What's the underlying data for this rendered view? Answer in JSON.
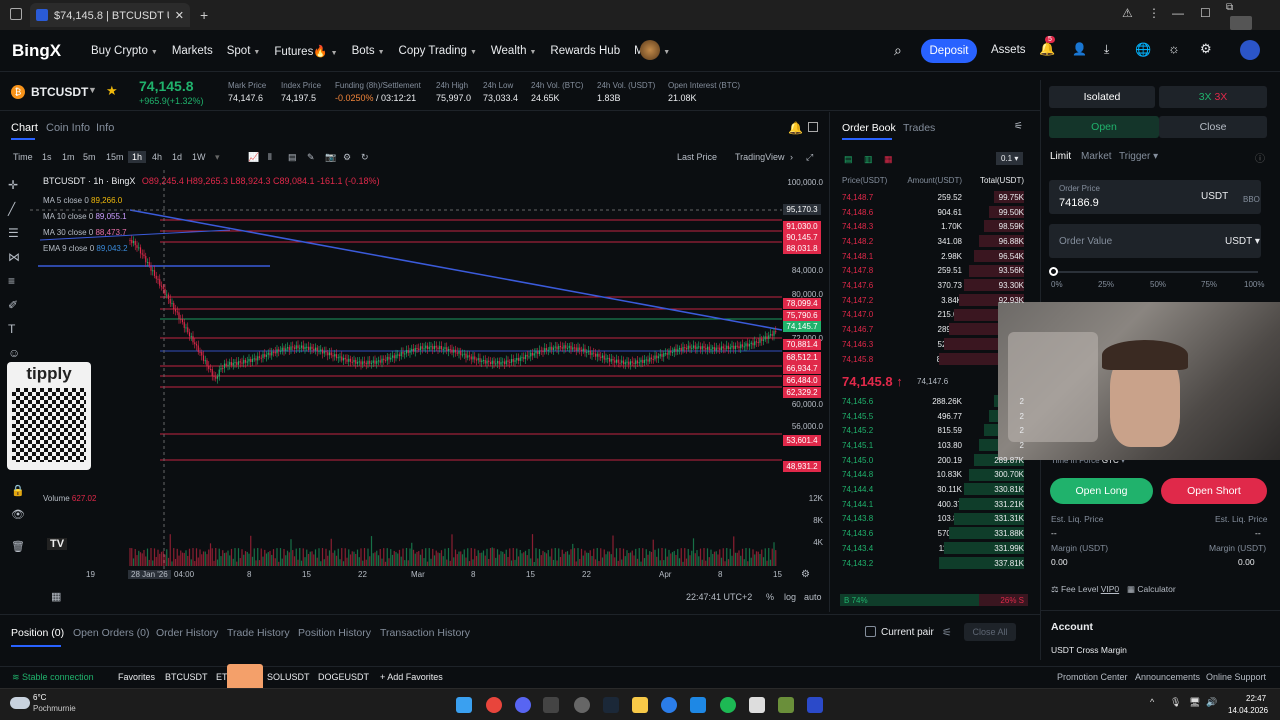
{
  "browser": {
    "tab_title": "$74,145.8 | BTCUSDT USDⓈ...",
    "new_tab": "+"
  },
  "nav": {
    "logo": "BingX",
    "items": [
      "Buy Crypto",
      "Markets",
      "Spot",
      "Futures🔥",
      "Bots",
      "Copy Trading",
      "Wealth",
      "Rewards Hub",
      "More"
    ],
    "deposit": "Deposit",
    "assets": "Assets",
    "notif_count": "5"
  },
  "ticker": {
    "symbol": "BTCUSDT",
    "price": "74,145.8",
    "change": "+965.9(+1.32%)",
    "stats": [
      {
        "label": "Mark Price",
        "value": "74,147.6"
      },
      {
        "label": "Index Price",
        "value": "74,197.5"
      },
      {
        "label": "Funding (8h)/Settlement",
        "value": "-0.0250%",
        "value2": "/ 03:12:21"
      },
      {
        "label": "24h High",
        "value": "75,997.0"
      },
      {
        "label": "24h Low",
        "value": "73,033.4"
      },
      {
        "label": "24h Vol. (BTC)",
        "value": "24.65K"
      },
      {
        "label": "24h Vol. (USDT)",
        "value": "1.83B"
      },
      {
        "label": "Open Interest (BTC)",
        "value": "21.08K"
      }
    ]
  },
  "chart": {
    "tabs": [
      "Chart",
      "Coin Info",
      "Info"
    ],
    "timeframes": [
      "Time",
      "1s",
      "1m",
      "5m",
      "15m",
      "1h",
      "4h",
      "1d",
      "1W"
    ],
    "last_price": "Last Price",
    "view": "TradingView",
    "legend": "BTCUSDT · 1h · BingX",
    "ohlc": "O89,245.4 H89,265.3 L88,924.3 C89,084.1 -161.1 (-0.18%)",
    "ma_lines": [
      {
        "label": "MA 5 close 0",
        "value": "89,266.0"
      },
      {
        "label": "MA 10 close 0",
        "value": "89,055.1"
      },
      {
        "label": "MA 30 close 0",
        "value": "88,473.7"
      },
      {
        "label": "EMA 9 close 0",
        "value": "89,043.2"
      }
    ],
    "volume_label": "Volume",
    "volume_value": "627.02",
    "price_axis": [
      "100,000.0",
      "84,000.0",
      "80,000.0",
      "72,000.0",
      "60,000.0",
      "56,000.0",
      "12K",
      "8K",
      "4K"
    ],
    "price_badges": [
      "95,170.3",
      "91,030.0",
      "90,145.7",
      "88,031.8",
      "78,099.4",
      "75,790.6",
      "74,145.7",
      "70,881.4",
      "68,512.1",
      "66,934.7",
      "66,484.0",
      "62,329.2",
      "53,601.4",
      "48,931.2"
    ],
    "time_axis": [
      "19",
      "28 Jan '26",
      "04:00",
      "8",
      "15",
      "22",
      "Mar",
      "8",
      "15",
      "22",
      "Apr",
      "8",
      "15"
    ],
    "clock": "22:47:41 UTC+2",
    "scale_opts": [
      "%",
      "log",
      "auto"
    ],
    "sponsor": "tipply",
    "colors": {
      "up": "#20b26c",
      "down": "#e0294a",
      "accent": "#2962ff",
      "line": "#3b5bdb"
    }
  },
  "orderbook": {
    "tabs": [
      "Order Book",
      "Trades"
    ],
    "step": "0.1",
    "headers": [
      "Price(USDT)",
      "Amount(USDT)",
      "Total(USDT)"
    ],
    "asks": [
      [
        "74,148.7",
        "259.52",
        "99.75K"
      ],
      [
        "74,148.6",
        "904.61",
        "99.50K"
      ],
      [
        "74,148.3",
        "1.70K",
        "98.59K"
      ],
      [
        "74,148.2",
        "341.08",
        "96.88K"
      ],
      [
        "74,148.1",
        "2.98K",
        "96.54K"
      ],
      [
        "74,147.8",
        "259.51",
        "93.56K"
      ],
      [
        "74,147.6",
        "370.73",
        "93.30K"
      ],
      [
        "74,147.2",
        "3.84K",
        "92.93K"
      ],
      [
        "74,147.0",
        "215.02",
        ""
      ],
      [
        "74,146.7",
        "289.17",
        ""
      ],
      [
        "74,146.3",
        "526.43",
        ""
      ],
      [
        "74,145.8",
        "88.06K",
        ""
      ]
    ],
    "mid_price": "74,145.8",
    "mid_mark": "74,147.6",
    "bids": [
      [
        "74,145.6",
        "288.26K",
        "2"
      ],
      [
        "74,145.5",
        "496.77",
        "2"
      ],
      [
        "74,145.2",
        "815.59",
        "2"
      ],
      [
        "74,145.1",
        "103.80",
        "2"
      ],
      [
        "74,145.0",
        "200.19",
        "289.87K"
      ],
      [
        "74,144.8",
        "10.83K",
        "300.70K"
      ],
      [
        "74,144.4",
        "30.11K",
        "330.81K"
      ],
      [
        "74,144.1",
        "400.37",
        "331.21K"
      ],
      [
        "74,143.8",
        "103.80",
        "331.31K"
      ],
      [
        "74,143.6",
        "570.90",
        "331.88K"
      ],
      [
        "74,143.4",
        "111.21",
        "331.99K"
      ],
      [
        "74,143.2",
        "5.81K",
        "337.81K"
      ]
    ],
    "ratio_buy": "74%",
    "ratio_sell": "26%",
    "buy_share": 0.74
  },
  "trade": {
    "margin_mode": "Isolated",
    "leverage": "3X",
    "leverage2": "3X",
    "open": "Open",
    "close": "Close",
    "order_types": [
      "Limit",
      "Market",
      "Trigger"
    ],
    "order_price_label": "Order Price",
    "order_price": "74186.9",
    "currency": "USDT",
    "bbo": "BBO",
    "order_value": "Order Value",
    "slider_marks": [
      "0%",
      "25%",
      "50%",
      "75%",
      "100%"
    ],
    "tif": "Time in Force",
    "tif_val": "GTC",
    "open_long": "Open Long",
    "open_short": "Open Short",
    "liq_label": "Est. Liq. Price",
    "liq_val": "--",
    "margin_label": "Margin (USDT)",
    "margin_val": "0.00",
    "fee": "Fee Level",
    "fee_vip": "VIP0",
    "calculator": "Calculator",
    "account": "Account",
    "account_sub": "USDT Cross Margin"
  },
  "bottom": {
    "tabs": [
      "Position (0)",
      "Open Orders (0)",
      "Order History",
      "Trade History",
      "Position History",
      "Transaction History"
    ],
    "current_pair": "Current pair",
    "close_all": "Close All"
  },
  "status": {
    "connection": "Stable connection",
    "favorites": [
      "Favorites",
      "BTCUSDT",
      "ET",
      "SOLUSDT",
      "DOGEUSDT"
    ],
    "add_fav": "Add Favorites",
    "links": [
      "Promotion Center",
      "Announcements",
      "Online Support"
    ]
  },
  "taskbar": {
    "temp": "6°C",
    "weather": "Pochmurnie",
    "time": "22:47",
    "date": "14.04.2026"
  }
}
